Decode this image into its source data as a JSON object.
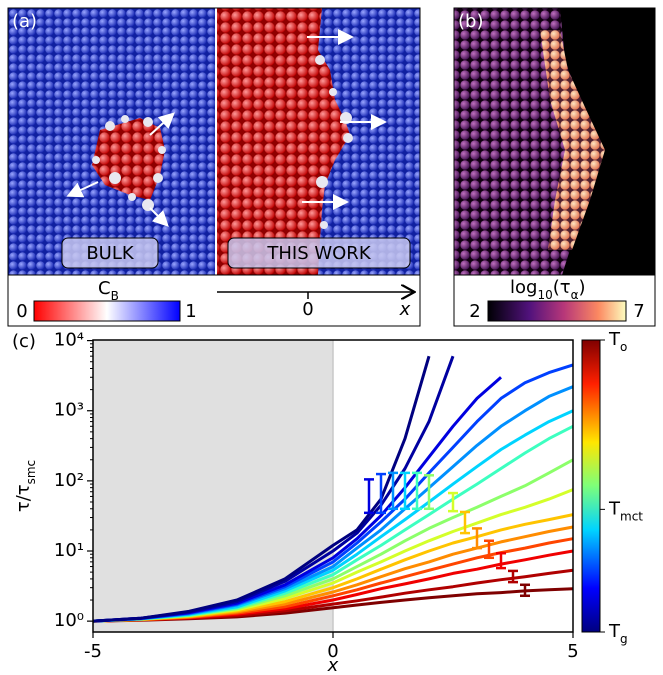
{
  "panel_a": {
    "label": "(a)",
    "left_label": "BULK",
    "right_label": "THIS WORK",
    "colorbar": {
      "label": [
        {
          "text": "C"
        },
        {
          "text": "B",
          "sub": true
        }
      ],
      "ticks": [
        0,
        1
      ]
    },
    "axis": {
      "tick": 0,
      "label": "x"
    }
  },
  "panel_b": {
    "label": "(b)",
    "colorbar": {
      "label": [
        {
          "text": "log"
        },
        {
          "text": "10",
          "sub": true
        },
        {
          "text": "(τ"
        },
        {
          "text": "α",
          "sub": true
        },
        {
          "text": ")"
        }
      ],
      "ticks": [
        2,
        7
      ]
    }
  },
  "chart_data": {
    "type": "line",
    "label": "(c)",
    "xlabel": "x",
    "ylabel": [
      {
        "text": "τ/τ"
      },
      {
        "text": "smc",
        "sub": true
      }
    ],
    "log_y": true,
    "shaded_region": [
      -5,
      0
    ],
    "xlim": [
      -5,
      5
    ],
    "xticks": [
      -5,
      0,
      5
    ],
    "ylim": [
      0.7,
      10200
    ],
    "yticks": [
      {
        "value": 1,
        "label": "10⁰"
      },
      {
        "value": 10,
        "label": "10¹"
      },
      {
        "value": 100,
        "label": "10²"
      },
      {
        "value": 1000,
        "label": "10³"
      },
      {
        "value": 10000,
        "label": "10⁴"
      }
    ],
    "x": [
      -5,
      -4,
      -3,
      -2,
      -1,
      0,
      0.5,
      1,
      1.5,
      2,
      2.5,
      3,
      3.5,
      4,
      4.5,
      5
    ],
    "series": [
      {
        "color": "#7f0000",
        "values": [
          1.0,
          1.03,
          1.08,
          1.15,
          1.3,
          1.55,
          1.7,
          1.85,
          2.0,
          2.15,
          2.3,
          2.45,
          2.55,
          2.7,
          2.8,
          2.9
        ],
        "errorbar": {
          "x": 4,
          "y": 2.8,
          "err": 0.5
        }
      },
      {
        "color": "#b00000",
        "values": [
          1.0,
          1.04,
          1.1,
          1.2,
          1.4,
          1.75,
          1.95,
          2.2,
          2.5,
          2.8,
          3.1,
          3.5,
          3.9,
          4.3,
          4.8,
          5.3
        ],
        "errorbar": {
          "x": 3.75,
          "y": 4.4,
          "err": 0.8
        }
      },
      {
        "color": "#f00000",
        "values": [
          1.0,
          1.05,
          1.12,
          1.25,
          1.5,
          2.0,
          2.4,
          2.9,
          3.4,
          4.0,
          4.8,
          5.5,
          6.5,
          7.5,
          8.7,
          10
        ],
        "errorbar": {
          "x": 3.5,
          "y": 7.5,
          "err": 1.8
        }
      },
      {
        "color": "#ff4500",
        "values": [
          1.0,
          1.05,
          1.13,
          1.3,
          1.6,
          2.3,
          2.8,
          3.5,
          4.3,
          5.3,
          6.5,
          8,
          9.5,
          11,
          13,
          15
        ],
        "errorbar": {
          "x": 3.25,
          "y": 11,
          "err": 3
        }
      },
      {
        "color": "#ff8c00",
        "values": [
          1.0,
          1.06,
          1.15,
          1.35,
          1.75,
          2.6,
          3.3,
          4.3,
          5.6,
          7,
          9,
          11,
          13.5,
          16,
          19,
          22
        ],
        "errorbar": {
          "x": 3,
          "y": 16,
          "err": 5
        }
      },
      {
        "color": "#ffc400",
        "values": [
          1.0,
          1.06,
          1.17,
          1.4,
          1.9,
          3.0,
          4,
          5.5,
          7.5,
          10,
          13,
          16,
          20,
          24,
          28,
          33
        ],
        "errorbar": {
          "x": 2.75,
          "y": 27,
          "err": 9
        }
      },
      {
        "color": "#d4ff2a",
        "values": [
          1.0,
          1.07,
          1.2,
          1.45,
          2.1,
          3.5,
          5,
          7,
          10,
          14,
          19,
          25,
          33,
          42,
          55,
          75
        ],
        "errorbar": {
          "x": 2.5,
          "y": 52,
          "err": 15
        }
      },
      {
        "color": "#8cff6a",
        "values": [
          1.0,
          1.07,
          1.2,
          1.5,
          2.3,
          4,
          6,
          9,
          14,
          21,
          30,
          42,
          60,
          85,
          130,
          200
        ],
        "errorbar": {
          "x": 2,
          "y": 80,
          "err": 40
        }
      },
      {
        "color": "#3dffc0",
        "values": [
          1.0,
          1.08,
          1.22,
          1.55,
          2.5,
          4.6,
          7.5,
          12,
          20,
          33,
          55,
          90,
          150,
          250,
          400,
          600
        ],
        "errorbar": {
          "x": 1.75,
          "y": 85,
          "err": 45
        }
      },
      {
        "color": "#00d4ff",
        "values": [
          1.0,
          1.08,
          1.25,
          1.6,
          2.7,
          5.3,
          9,
          16,
          28,
          50,
          90,
          160,
          280,
          450,
          700,
          1000
        ],
        "errorbar": {
          "x": 1.5,
          "y": 85,
          "err": 45
        }
      },
      {
        "color": "#0090ff",
        "values": [
          1.0,
          1.08,
          1.27,
          1.7,
          2.9,
          6,
          11,
          20,
          40,
          80,
          160,
          320,
          600,
          1000,
          1600,
          2200
        ],
        "errorbar": {
          "x": 1.25,
          "y": 85,
          "err": 45
        }
      },
      {
        "color": "#0040ff",
        "values": [
          1.0,
          1.09,
          1.3,
          1.75,
          3.1,
          7,
          13,
          26,
          55,
          130,
          300,
          700,
          1500,
          2500,
          3500,
          4500
        ],
        "errorbar": {
          "x": 1,
          "y": 80,
          "err": 45
        }
      },
      {
        "color": "#0000e0",
        "values": [
          1.0,
          1.1,
          1.32,
          1.8,
          3.3,
          8,
          15,
          32,
          80,
          220,
          600,
          1500,
          3000,
          null,
          null,
          null
        ],
        "errorbar": {
          "x": 0.75,
          "y": 70,
          "err": 35
        }
      },
      {
        "color": "#0000a0",
        "values": [
          1.0,
          1.1,
          1.35,
          1.9,
          3.7,
          10,
          18,
          45,
          150,
          700,
          6000,
          null,
          null,
          null,
          null,
          null
        ]
      },
      {
        "color": "#000080",
        "values": [
          1.0,
          1.1,
          1.38,
          2.0,
          4,
          12,
          20,
          55,
          400,
          6000,
          null,
          null,
          null,
          null,
          null,
          null
        ]
      }
    ],
    "colorbar": {
      "ticks": [
        [
          {
            "text": "T"
          },
          {
            "text": "o",
            "sub": true
          }
        ],
        [
          {
            "text": "T"
          },
          {
            "text": "mct",
            "sub": true
          }
        ],
        [
          {
            "text": "T"
          },
          {
            "text": "g",
            "sub": true
          }
        ]
      ]
    }
  }
}
